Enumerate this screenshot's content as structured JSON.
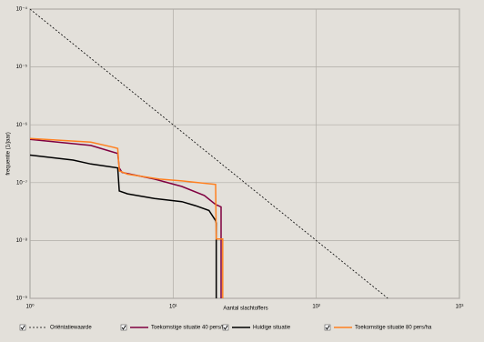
{
  "chart_data": {
    "type": "line",
    "xlabel": "Aantal slachtoffers",
    "ylabel": "frequentie (1/jaar)",
    "xscale": "log",
    "yscale": "log",
    "grid": true,
    "xlim": [
      1,
      1000
    ],
    "ylim": [
      1e-09,
      0.0001
    ],
    "xticks": [
      {
        "value": 1,
        "label": "10⁰"
      },
      {
        "value": 10,
        "label": "10¹"
      },
      {
        "value": 100,
        "label": "10²"
      },
      {
        "value": 1000,
        "label": "10³"
      }
    ],
    "yticks": [
      {
        "value": 1e-09,
        "label": "10⁻⁹"
      },
      {
        "value": 1e-08,
        "label": "10⁻⁸"
      },
      {
        "value": 1e-07,
        "label": "10⁻⁷"
      },
      {
        "value": 1e-06,
        "label": "10⁻⁶"
      },
      {
        "value": 1e-05,
        "label": "10⁻⁵"
      },
      {
        "value": 0.0001,
        "label": "10⁻⁴"
      }
    ],
    "series": [
      {
        "name": "Oriëntatiewaarde",
        "color": "#000000",
        "style": "dashed",
        "x": [
          1,
          316.2
        ],
        "values": [
          0.0001,
          1e-09
        ]
      },
      {
        "name": "Toekomstige situatie 40 pers/ha",
        "color": "#800040",
        "style": "solid",
        "x": [
          1,
          2.66,
          4.1,
          4.2,
          4.4,
          7.4,
          11.5,
          16.5,
          19.8,
          21.6,
          21.6
        ],
        "values": [
          5.6e-07,
          4.4e-07,
          3.2e-07,
          1.8e-07,
          1.5e-07,
          1.15e-07,
          8.6e-08,
          6e-08,
          4.2e-08,
          3.8e-08,
          1e-09
        ]
      },
      {
        "name": "Huidige situatie",
        "color": "#000000",
        "style": "solid",
        "x": [
          1,
          2.0,
          2.66,
          4.1,
          4.2,
          4.8,
          7.4,
          11.5,
          14.3,
          17.8,
          19.8,
          20.0,
          20.0
        ],
        "values": [
          3e-07,
          2.45e-07,
          2.1e-07,
          1.8e-07,
          7.2e-08,
          6.4e-08,
          5.3e-08,
          4.7e-08,
          4e-08,
          3.3e-08,
          2.2e-08,
          2e-08,
          1e-09
        ]
      },
      {
        "name": "Toekomstige situatie 80 pers/ha",
        "color": "#ff8020",
        "style": "solid",
        "x": [
          1,
          2.66,
          3.8,
          4.1,
          4.2,
          4.8,
          8.0,
          11.5,
          19.8,
          20.0,
          22.2,
          22.2
        ],
        "values": [
          5.8e-07,
          5e-07,
          4.1e-07,
          3.9e-07,
          1.6e-07,
          1.4e-07,
          1.15e-07,
          1.07e-07,
          9.3e-08,
          1.06e-08,
          1.06e-08,
          1e-09
        ]
      }
    ]
  }
}
